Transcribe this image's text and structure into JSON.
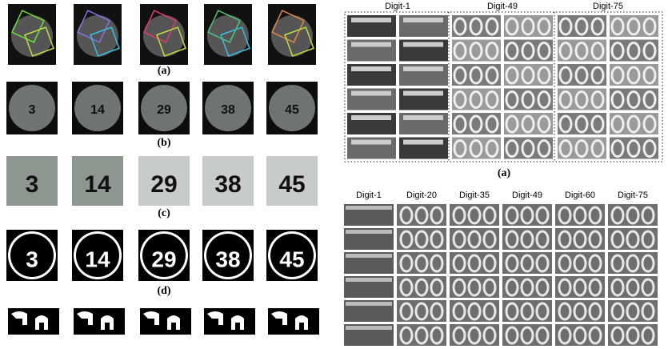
{
  "left_panel": {
    "row_labels": [
      "(a)",
      "(b)",
      "(c)",
      "(d)"
    ],
    "ball_numbers": [
      "3",
      "14",
      "29",
      "38",
      "45"
    ]
  },
  "right_top": {
    "headers": [
      "Digit-1",
      "Digit-49",
      "Digit-75"
    ],
    "label": "(a)"
  },
  "right_bottom": {
    "headers": [
      "Digit-1",
      "Digit-20",
      "Digit-35",
      "Digit-49",
      "Digit-60",
      "Digit-75"
    ]
  }
}
